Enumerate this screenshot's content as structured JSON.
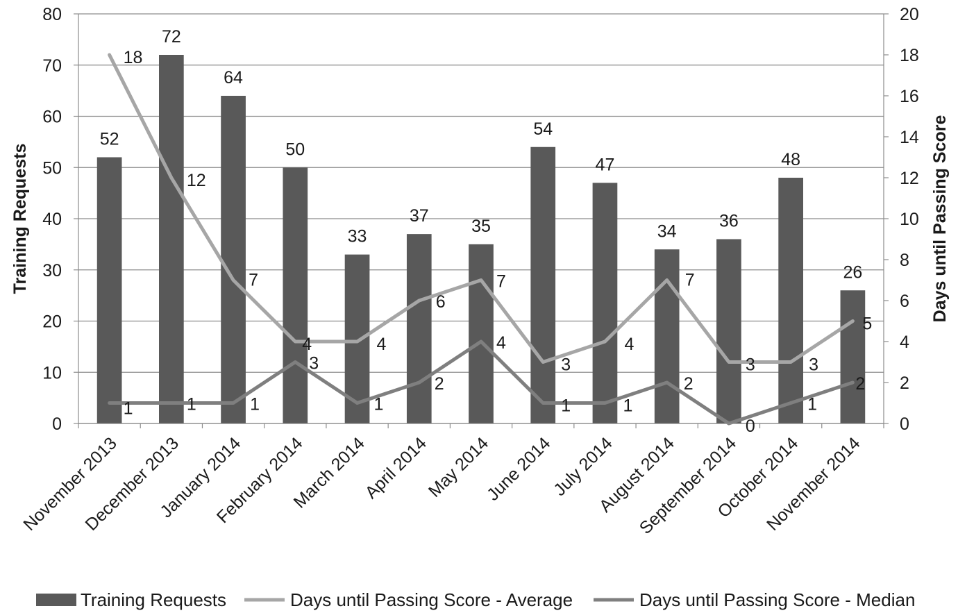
{
  "chart_data": {
    "type": "bar",
    "categories": [
      "November 2013",
      "December 2013",
      "January 2014",
      "February 2014",
      "March 2014",
      "April 2014",
      "May 2014",
      "June 2014",
      "July 2014",
      "August 2014",
      "September 2014",
      "October 2014",
      "November 2014"
    ],
    "series": [
      {
        "name": "Training Requests",
        "type": "bar",
        "axis": "left",
        "color": "#595959",
        "values": [
          52,
          72,
          64,
          50,
          33,
          37,
          35,
          54,
          47,
          34,
          36,
          48,
          26
        ]
      },
      {
        "name": "Days until Passing Score - Average",
        "type": "line",
        "axis": "right",
        "color": "#a6a6a6",
        "values": [
          18,
          12,
          7,
          4,
          4,
          6,
          7,
          3,
          4,
          7,
          3,
          3,
          5
        ]
      },
      {
        "name": "Days until Passing Score - Median",
        "type": "line",
        "axis": "right",
        "color": "#7f7f7f",
        "values": [
          1,
          1,
          1,
          3,
          1,
          2,
          4,
          1,
          1,
          2,
          0,
          1,
          2
        ]
      }
    ],
    "ylabel": "Training Requests",
    "y2label": "Days until Passing Score",
    "ylim": [
      0,
      80
    ],
    "y2lim": [
      0,
      20
    ],
    "yticks": [
      0,
      10,
      20,
      30,
      40,
      50,
      60,
      70,
      80
    ],
    "y2ticks": [
      0,
      2,
      4,
      6,
      8,
      10,
      12,
      14,
      16,
      18,
      20
    ],
    "grid": true,
    "legend": "bottom"
  }
}
